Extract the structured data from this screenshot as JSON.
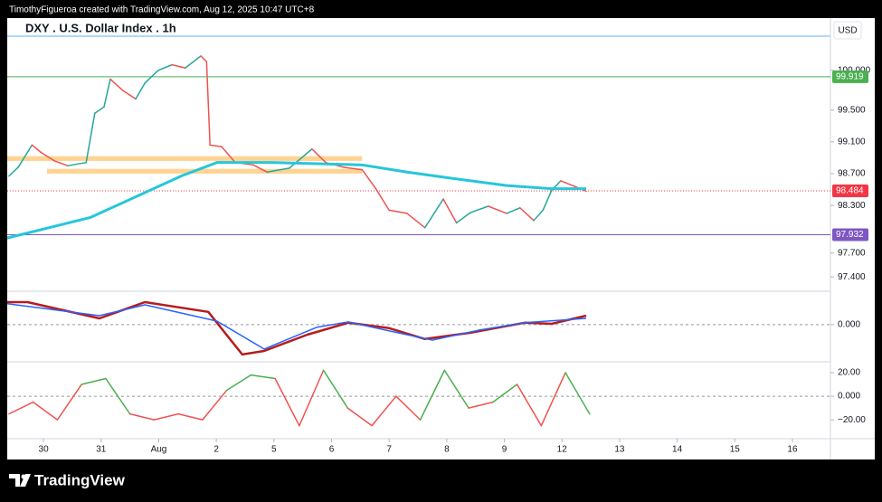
{
  "header": {
    "credit": "TimothyFigueroa created with TradingView.com, Aug 12, 2025 10:47 UTC+8"
  },
  "footer": {
    "brand": "TradingView"
  },
  "chart_data": [
    {
      "type": "line",
      "title": "DXY . U.S. Dollar Index . 1h",
      "currency": "USD",
      "xlim": [
        -0.63,
        13.66
      ],
      "xticks": [
        {
          "value": 0,
          "label": "30"
        },
        {
          "value": 1,
          "label": "31"
        },
        {
          "value": 2,
          "label": "Aug"
        },
        {
          "value": 3,
          "label": "2"
        },
        {
          "value": 4,
          "label": "5"
        },
        {
          "value": 5,
          "label": "6"
        },
        {
          "value": 6,
          "label": "7"
        },
        {
          "value": 7,
          "label": "8"
        },
        {
          "value": 8,
          "label": "9"
        },
        {
          "value": 9,
          "label": "12"
        },
        {
          "value": 10,
          "label": "13"
        },
        {
          "value": 11,
          "label": "14"
        },
        {
          "value": 12,
          "label": "15"
        },
        {
          "value": 13,
          "label": "16"
        }
      ],
      "ylim": [
        97.22,
        100.43
      ],
      "yticks": [
        {
          "value": 100,
          "label": "100.000"
        },
        {
          "value": 99.5,
          "label": "99.500"
        },
        {
          "value": 99.1,
          "label": "99.100"
        },
        {
          "value": 98.7,
          "label": "98.700"
        },
        {
          "value": 98.3,
          "label": "98.300"
        },
        {
          "value": 97.7,
          "label": "97.700"
        },
        {
          "value": 97.4,
          "label": "97.400"
        }
      ],
      "series": [
        {
          "color_by": "direction",
          "color_up": "#26a69a",
          "color_down": "#ef5350",
          "x": [
            -0.6,
            -0.44,
            -0.2,
            -0.05,
            0.19,
            0.42,
            0.74,
            0.89,
            1.05,
            1.16,
            1.37,
            1.6,
            1.76,
            1.99,
            2.23,
            2.46,
            2.73,
            2.83,
            2.89,
            3.09,
            3.33,
            3.64,
            3.88,
            4.27,
            4.66,
            4.9,
            5.21,
            5.53,
            5.76,
            6.0,
            6.31,
            6.62,
            6.94,
            7.17,
            7.41,
            7.72,
            8.04,
            8.27,
            8.51,
            8.67,
            8.82,
            8.98,
            9.22,
            9.42
          ],
          "values": [
            98.67,
            98.78,
            99.06,
            98.97,
            98.86,
            98.8,
            98.84,
            99.46,
            99.54,
            99.89,
            99.75,
            99.64,
            99.84,
            100.0,
            100.07,
            100.03,
            100.18,
            100.11,
            99.06,
            99.04,
            98.84,
            98.81,
            98.72,
            98.77,
            99.01,
            98.84,
            98.78,
            98.75,
            98.52,
            98.24,
            98.2,
            98.02,
            98.38,
            98.08,
            98.21,
            98.29,
            98.2,
            98.27,
            98.11,
            98.24,
            98.49,
            98.61,
            98.54,
            98.48
          ]
        },
        {
          "color": "#26c6da",
          "width": 3,
          "x": [
            -0.63,
            0.82,
            2.39,
            3.01,
            3.96,
            5.53,
            6.31,
            7.1,
            8.04,
            8.82,
            9.42
          ],
          "values": [
            97.89,
            98.15,
            98.67,
            98.84,
            98.84,
            98.81,
            98.72,
            98.64,
            98.55,
            98.51,
            98.51
          ]
        }
      ],
      "zones": [
        {
          "x": [
            -0.63,
            5.53
          ],
          "y": [
            98.86,
            98.92
          ]
        },
        {
          "x": [
            0.06,
            5.53
          ],
          "y": [
            98.7,
            98.76
          ]
        }
      ],
      "zone_color": "#ffcc80",
      "levels": [
        {
          "value": 99.919,
          "color": "#4caf50"
        },
        {
          "value": 98.484,
          "color": "#f23645",
          "dash": true
        },
        {
          "value": 97.932,
          "color": "#7e57c2"
        }
      ]
    },
    {
      "type": "line",
      "xlim": [
        -0.63,
        13.66
      ],
      "ylim": [
        -0.137,
        0.123
      ],
      "yticks": [
        {
          "value": 0,
          "label": "0.000"
        }
      ],
      "series": [
        {
          "color": "#b71c1c",
          "width": 2.5,
          "x": [
            -0.63,
            -0.28,
            0.97,
            1.76,
            2.86,
            3.45,
            3.83,
            4.58,
            5.29,
            6.0,
            6.62,
            7.41,
            8.35,
            8.82,
            9.42
          ],
          "values": [
            0.083,
            0.083,
            0.023,
            0.083,
            0.047,
            -0.11,
            -0.097,
            -0.037,
            0.007,
            -0.013,
            -0.053,
            -0.03,
            0.007,
            0.003,
            0.033
          ]
        },
        {
          "color": "#2962ff",
          "width": 1.5,
          "x": [
            -0.63,
            0.97,
            1.76,
            3.01,
            3.83,
            4.74,
            5.29,
            6.15,
            6.75,
            7.57,
            8.35,
            9.42
          ],
          "values": [
            0.077,
            0.033,
            0.073,
            0.013,
            -0.09,
            -0.01,
            0.01,
            -0.03,
            -0.057,
            -0.02,
            0.007,
            0.023
          ]
        }
      ]
    },
    {
      "type": "line",
      "xlim": [
        -0.63,
        13.66
      ],
      "ylim": [
        -36,
        29.2
      ],
      "yticks": [
        {
          "value": 20,
          "label": "20.00"
        },
        {
          "value": 0,
          "label": "0.000"
        },
        {
          "value": -20,
          "label": "−20.00"
        }
      ],
      "series": [
        {
          "color_by": "sign",
          "color_up": "#4caf50",
          "color_down": "#ef5350",
          "x": [
            -0.6,
            -0.18,
            0.24,
            0.66,
            1.08,
            1.5,
            1.92,
            2.34,
            2.76,
            3.18,
            3.6,
            4.02,
            4.44,
            4.86,
            5.28,
            5.7,
            6.12,
            6.54,
            6.96,
            7.38,
            7.8,
            8.22,
            8.64,
            9.06,
            9.48
          ],
          "values": [
            -15,
            -5,
            -20,
            10,
            15,
            -15,
            -20,
            -15,
            -20,
            5,
            18,
            15,
            -25,
            22,
            -10,
            -25,
            0,
            -20,
            22,
            -10,
            -5,
            10,
            -25,
            20,
            -15
          ]
        }
      ]
    }
  ]
}
